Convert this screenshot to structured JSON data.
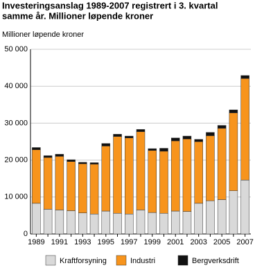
{
  "chart_data": {
    "type": "stacked_bar",
    "title": [
      "Investeringsanslag 1989-2007 registrert i 3. kvartal",
      "samme år. Millioner løpende kroner"
    ],
    "y_label": "Millioner løpende kroner",
    "categories": [
      "1989",
      null,
      "1991",
      null,
      "1993",
      null,
      "1995",
      null,
      "1997",
      null,
      "1999",
      null,
      "2001",
      null,
      "2003",
      null,
      "2005",
      null,
      "2007"
    ],
    "series": [
      {
        "name": "Kraftforsyning",
        "color": "#d9d9d9",
        "values": [
          8300,
          6700,
          6500,
          6300,
          5700,
          5400,
          6200,
          5600,
          5400,
          6500,
          5800,
          5600,
          6200,
          6100,
          8300,
          9000,
          9300,
          11700,
          14600
        ]
      },
      {
        "name": "Industri",
        "color": "#f7941d",
        "values": [
          14500,
          14000,
          14500,
          13300,
          13300,
          13500,
          17600,
          20800,
          20600,
          21200,
          16800,
          16800,
          19000,
          19600,
          16700,
          17600,
          19300,
          21100,
          27500
        ]
      },
      {
        "name": "Bergverksdrift",
        "color": "#111111",
        "values": [
          600,
          500,
          600,
          500,
          400,
          400,
          700,
          600,
          500,
          600,
          500,
          800,
          800,
          800,
          600,
          900,
          800,
          800,
          800
        ]
      }
    ],
    "ylim": [
      0,
      50000
    ],
    "yticks": [
      0,
      {
        "value": 10000,
        "label": "10 000"
      },
      {
        "value": 20000,
        "label": "20 000"
      },
      {
        "value": 30000,
        "label": "30 000"
      },
      {
        "value": 40000,
        "label": "40 000"
      },
      {
        "value": 50000,
        "label": "50 000"
      }
    ],
    "grid": true,
    "legend": "bottom"
  }
}
